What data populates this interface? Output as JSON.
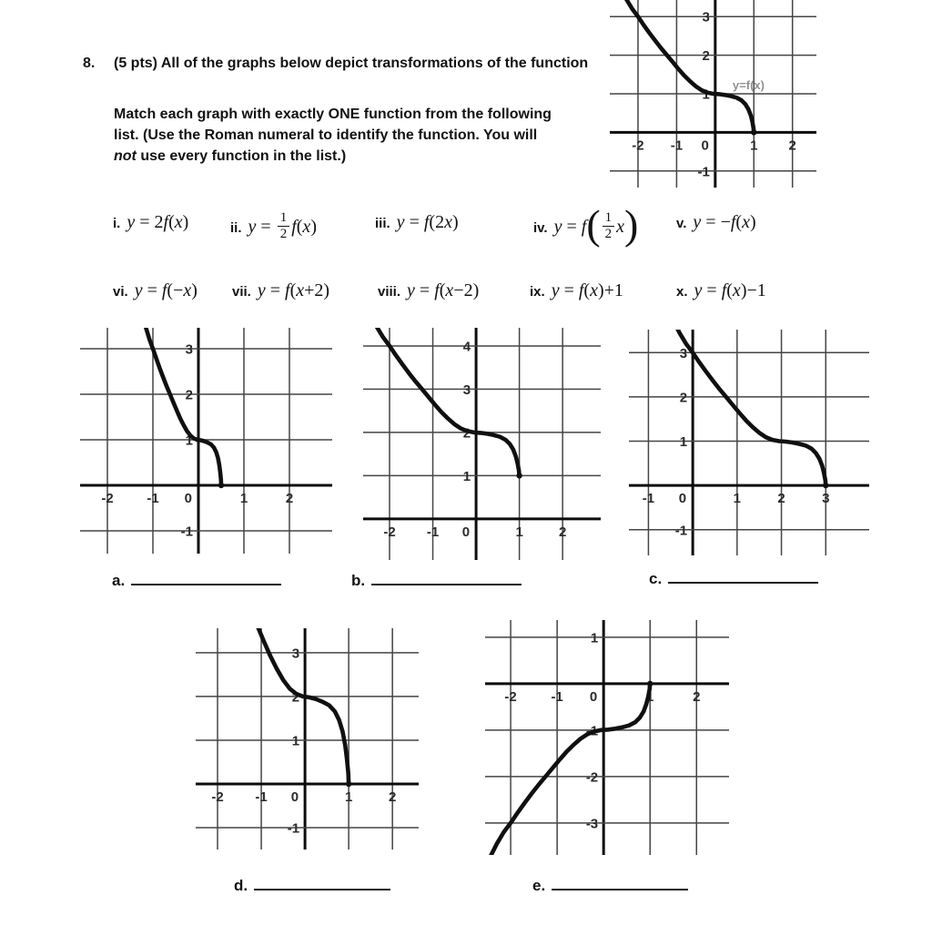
{
  "problem": {
    "number": "8.",
    "intro": "(5 pts) All of the graphs below depict transformations of the function",
    "line1": "Match each graph with exactly ONE function from the following",
    "line2": "list. (Use the Roman numeral to identify the function. You will",
    "line3_italic": "not",
    "line3_rest": " use every function in the list.)"
  },
  "functions": [
    {
      "numeral": "i.",
      "expr": [
        {
          "t": "y",
          "i": 1
        },
        {
          "t": " = 2"
        },
        {
          "t": "f",
          "i": 1
        },
        {
          "t": "("
        },
        {
          "t": "x",
          "i": 1
        },
        {
          "t": ")"
        }
      ]
    },
    {
      "numeral": "ii.",
      "expr": [
        {
          "t": "y",
          "i": 1
        },
        {
          "t": " = "
        },
        {
          "frac": [
            "1",
            "2"
          ]
        },
        {
          "t": "f",
          "i": 1
        },
        {
          "t": "("
        },
        {
          "t": "x",
          "i": 1
        },
        {
          "t": ")"
        }
      ]
    },
    {
      "numeral": "iii.",
      "expr": [
        {
          "t": "y",
          "i": 1
        },
        {
          "t": " = "
        },
        {
          "t": "f",
          "i": 1
        },
        {
          "t": "(2"
        },
        {
          "t": "x",
          "i": 1
        },
        {
          "t": ")"
        }
      ]
    },
    {
      "numeral": "iv.",
      "expr": [
        {
          "t": "y",
          "i": 1
        },
        {
          "t": " = "
        },
        {
          "t": "f",
          "i": 1
        },
        {
          "t": "(",
          "big": 1
        },
        {
          "frac": [
            "1",
            "2"
          ]
        },
        {
          "t": "x",
          "i": 1
        },
        {
          "t": ")",
          "big": 1
        }
      ]
    },
    {
      "numeral": "v.",
      "expr": [
        {
          "t": "y",
          "i": 1
        },
        {
          "t": " = −"
        },
        {
          "t": "f",
          "i": 1
        },
        {
          "t": "("
        },
        {
          "t": "x",
          "i": 1
        },
        {
          "t": ")"
        }
      ]
    },
    {
      "numeral": "vi.",
      "expr": [
        {
          "t": "y",
          "i": 1
        },
        {
          "t": " = "
        },
        {
          "t": "f",
          "i": 1
        },
        {
          "t": "(−"
        },
        {
          "t": "x",
          "i": 1
        },
        {
          "t": ")"
        }
      ]
    },
    {
      "numeral": "vii.",
      "expr": [
        {
          "t": "y",
          "i": 1
        },
        {
          "t": " = "
        },
        {
          "t": "f",
          "i": 1
        },
        {
          "t": "("
        },
        {
          "t": "x",
          "i": 1
        },
        {
          "t": "+2)"
        }
      ]
    },
    {
      "numeral": "viii.",
      "expr": [
        {
          "t": "y",
          "i": 1
        },
        {
          "t": " = "
        },
        {
          "t": "f",
          "i": 1
        },
        {
          "t": "("
        },
        {
          "t": "x",
          "i": 1
        },
        {
          "t": "−2)"
        }
      ]
    },
    {
      "numeral": "ix.",
      "expr": [
        {
          "t": "y",
          "i": 1
        },
        {
          "t": " = "
        },
        {
          "t": "f",
          "i": 1
        },
        {
          "t": "("
        },
        {
          "t": "x",
          "i": 1
        },
        {
          "t": ")+1"
        }
      ]
    },
    {
      "numeral": "x.",
      "expr": [
        {
          "t": "y",
          "i": 1
        },
        {
          "t": " = "
        },
        {
          "t": "f",
          "i": 1
        },
        {
          "t": "("
        },
        {
          "t": "x",
          "i": 1
        },
        {
          "t": ")−1"
        }
      ]
    }
  ],
  "answers": [
    {
      "label": "a."
    },
    {
      "label": "b."
    },
    {
      "label": "c."
    },
    {
      "label": "d."
    },
    {
      "label": "e."
    }
  ],
  "colors": {
    "curve": "#101010",
    "axis": "#0c0c0c",
    "grid": "#454545",
    "tick_text": "#2b2b2b",
    "annotation": "#8f8f8f"
  },
  "chart_data": {
    "type": "line",
    "note": "All graphs share one base curve; each plotted curve is x'=sx*x+dx, y'=sy*y+dy of the base.",
    "base_curve": [
      [
        -2.45,
        3.75
      ],
      [
        -2.3,
        3.45
      ],
      [
        -2.15,
        3.2
      ],
      [
        -2.0,
        3.0
      ],
      [
        -1.85,
        2.78
      ],
      [
        -1.7,
        2.57
      ],
      [
        -1.55,
        2.37
      ],
      [
        -1.4,
        2.18
      ],
      [
        -1.25,
        2.0
      ],
      [
        -1.1,
        1.82
      ],
      [
        -0.95,
        1.64
      ],
      [
        -0.8,
        1.47
      ],
      [
        -0.65,
        1.32
      ],
      [
        -0.5,
        1.19
      ],
      [
        -0.35,
        1.09
      ],
      [
        -0.2,
        1.03
      ],
      [
        -0.05,
        1.0
      ],
      [
        0.1,
        0.99
      ],
      [
        0.25,
        0.97
      ],
      [
        0.4,
        0.94
      ],
      [
        0.55,
        0.9
      ],
      [
        0.68,
        0.83
      ],
      [
        0.78,
        0.73
      ],
      [
        0.86,
        0.6
      ],
      [
        0.92,
        0.44
      ],
      [
        0.96,
        0.28
      ],
      [
        0.99,
        0.12
      ],
      [
        1.0,
        0.0
      ]
    ],
    "graphs": [
      {
        "name": "f",
        "title": "y=f(x)",
        "x_min": -2.73,
        "x_max": 2.62,
        "y_min": -1.43,
        "y_max": 3.43,
        "x_ticks": [
          -2,
          -1,
          0,
          1,
          2
        ],
        "y_ticks": [
          3,
          2,
          1,
          -1
        ],
        "transform": {
          "sx": 1,
          "sy": 1,
          "dx": 0,
          "dy": 0
        },
        "annotation": {
          "text": "y=f(x)",
          "x": 0.45,
          "y": 1.12
        }
      },
      {
        "name": "a",
        "x_min": -2.6,
        "x_max": 2.94,
        "y_min": -1.5,
        "y_max": 3.46,
        "x_ticks": [
          -2,
          -1,
          0,
          1,
          2
        ],
        "y_ticks": [
          3,
          2,
          1,
          -1
        ],
        "transform": {
          "sx": 0.5,
          "sy": 1,
          "dx": 0,
          "dy": 0
        }
      },
      {
        "name": "b",
        "x_min": -2.61,
        "x_max": 2.88,
        "y_min": -0.95,
        "y_max": 4.42,
        "x_ticks": [
          -2,
          -1,
          0,
          1,
          2
        ],
        "y_ticks": [
          4,
          3,
          2,
          1
        ],
        "transform": {
          "sx": 1,
          "sy": 1,
          "dx": 0,
          "dy": 1
        }
      },
      {
        "name": "c",
        "x_min": -1.44,
        "x_max": 3.98,
        "y_min": -1.58,
        "y_max": 3.52,
        "x_ticks": [
          -1,
          0,
          1,
          2,
          3
        ],
        "y_ticks": [
          3,
          2,
          1,
          -1
        ],
        "transform": {
          "sx": 1,
          "sy": 1,
          "dx": 2,
          "dy": 0
        }
      },
      {
        "name": "d",
        "x_min": -2.5,
        "x_max": 2.6,
        "y_min": -1.5,
        "y_max": 3.56,
        "x_ticks": [
          -2,
          -1,
          0,
          1,
          2
        ],
        "y_ticks": [
          3,
          2,
          1,
          -1
        ],
        "transform": {
          "sx": 1,
          "sy": 2,
          "dx": 0,
          "dy": 0
        }
      },
      {
        "name": "e",
        "x_min": -2.55,
        "x_max": 2.7,
        "y_min": -3.69,
        "y_max": 1.37,
        "x_ticks": [
          -2,
          -1,
          0,
          1,
          2
        ],
        "y_ticks": [
          1,
          -1,
          -2,
          -3
        ],
        "transform": {
          "sx": 1,
          "sy": -1,
          "dx": 0,
          "dy": 0
        }
      }
    ]
  }
}
